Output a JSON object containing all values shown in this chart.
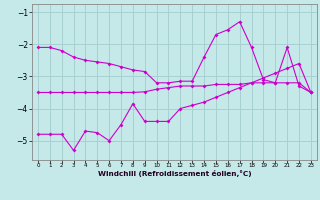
{
  "xlabel": "Windchill (Refroidissement éolien,°C)",
  "bg_color": "#c5e8e8",
  "grid_color": "#a8d0d0",
  "line_color": "#cc00cc",
  "hours": [
    0,
    1,
    2,
    3,
    4,
    5,
    6,
    7,
    8,
    9,
    10,
    11,
    12,
    13,
    14,
    15,
    16,
    17,
    18,
    19,
    20,
    21,
    22,
    23
  ],
  "line1": [
    -2.1,
    -2.1,
    -2.2,
    -2.4,
    -2.5,
    -2.55,
    -2.6,
    -2.7,
    -2.8,
    -2.85,
    -3.2,
    -3.2,
    -3.15,
    -3.15,
    -2.4,
    -1.7,
    -1.55,
    -1.3,
    -2.1,
    -3.1,
    -3.2,
    -2.1,
    -3.3,
    -3.5
  ],
  "line2": [
    -3.5,
    -3.5,
    -3.5,
    -3.5,
    -3.5,
    -3.5,
    -3.5,
    -3.5,
    -3.5,
    -3.48,
    -3.4,
    -3.35,
    -3.3,
    -3.3,
    -3.3,
    -3.25,
    -3.25,
    -3.25,
    -3.2,
    -3.2,
    -3.2,
    -3.2,
    -3.2,
    -3.5
  ],
  "line3": [
    -4.8,
    -4.8,
    -4.8,
    -5.3,
    -4.7,
    -4.75,
    -5.0,
    -4.5,
    -3.85,
    -4.4,
    -4.4,
    -4.4,
    -4.0,
    -3.9,
    -3.8,
    -3.65,
    -3.5,
    -3.35,
    -3.2,
    -3.05,
    -2.9,
    -2.75,
    -2.6,
    -3.5
  ],
  "ylim": [
    -5.6,
    -0.75
  ],
  "yticks": [
    -5,
    -4,
    -3,
    -2,
    -1
  ],
  "xticks": [
    0,
    1,
    2,
    3,
    4,
    5,
    6,
    7,
    8,
    9,
    10,
    11,
    12,
    13,
    14,
    15,
    16,
    17,
    18,
    19,
    20,
    21,
    22,
    23
  ]
}
